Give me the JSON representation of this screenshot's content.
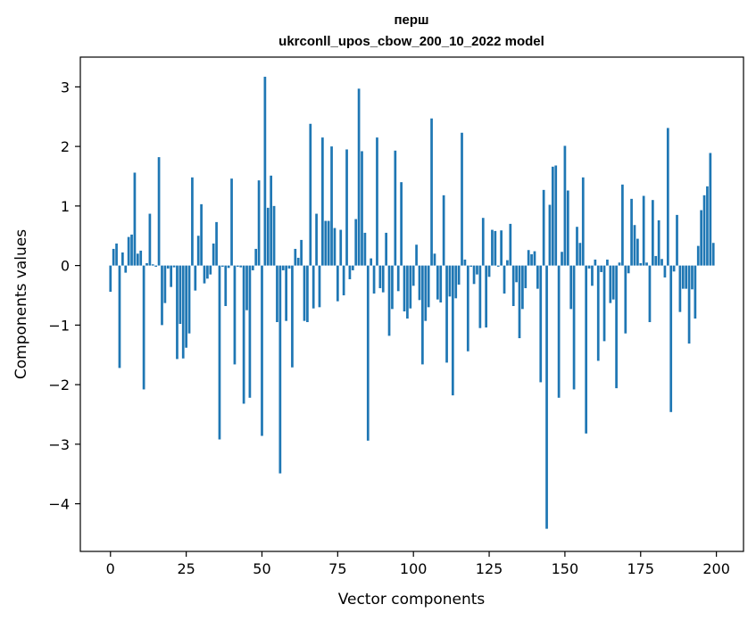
{
  "chart_data": {
    "type": "bar",
    "title": "перш",
    "subtitle": "ukrconll_upos_cbow_200_10_2022 model",
    "xlabel": "Vector components",
    "ylabel": "Components values",
    "xlim": [
      -9.95,
      208.95
    ],
    "ylim": [
      -4.8,
      3.5
    ],
    "xticks": [
      0,
      25,
      50,
      75,
      100,
      125,
      150,
      175,
      200
    ],
    "yticks": [
      -4,
      -3,
      -2,
      -1,
      0,
      1,
      2,
      3
    ],
    "xtick_labels": [
      "0",
      "25",
      "50",
      "75",
      "100",
      "125",
      "150",
      "175",
      "200"
    ],
    "ytick_labels": [
      "−4",
      "−3",
      "−2",
      "−1",
      "0",
      "1",
      "2",
      "3"
    ],
    "bar_color": "#1f77b4",
    "grid": false,
    "legend": "none",
    "x": [
      0,
      1,
      2,
      3,
      4,
      5,
      6,
      7,
      8,
      9,
      10,
      11,
      12,
      13,
      14,
      15,
      16,
      17,
      18,
      19,
      20,
      21,
      22,
      23,
      24,
      25,
      26,
      27,
      28,
      29,
      30,
      31,
      32,
      33,
      34,
      35,
      36,
      37,
      38,
      39,
      40,
      41,
      42,
      43,
      44,
      45,
      46,
      47,
      48,
      49,
      50,
      51,
      52,
      53,
      54,
      55,
      56,
      57,
      58,
      59,
      60,
      61,
      62,
      63,
      64,
      65,
      66,
      67,
      68,
      69,
      70,
      71,
      72,
      73,
      74,
      75,
      76,
      77,
      78,
      79,
      80,
      81,
      82,
      83,
      84,
      85,
      86,
      87,
      88,
      89,
      90,
      91,
      92,
      93,
      94,
      95,
      96,
      97,
      98,
      99,
      100,
      101,
      102,
      103,
      104,
      105,
      106,
      107,
      108,
      109,
      110,
      111,
      112,
      113,
      114,
      115,
      116,
      117,
      118,
      119,
      120,
      121,
      122,
      123,
      124,
      125,
      126,
      127,
      128,
      129,
      130,
      131,
      132,
      133,
      134,
      135,
      136,
      137,
      138,
      139,
      140,
      141,
      142,
      143,
      144,
      145,
      146,
      147,
      148,
      149,
      150,
      151,
      152,
      153,
      154,
      155,
      156,
      157,
      158,
      159,
      160,
      161,
      162,
      163,
      164,
      165,
      166,
      167,
      168,
      169,
      170,
      171,
      172,
      173,
      174,
      175,
      176,
      177,
      178,
      179,
      180,
      181,
      182,
      183,
      184,
      185,
      186,
      187,
      188,
      189,
      190,
      191,
      192,
      193,
      194,
      195,
      196,
      197,
      198,
      199
    ],
    "values": [
      -0.44,
      0.28,
      0.37,
      -1.72,
      0.22,
      -0.12,
      0.48,
      0.52,
      1.56,
      0.2,
      0.25,
      -2.08,
      0.04,
      0.87,
      0.02,
      -0.02,
      1.82,
      -1.0,
      -0.63,
      -0.05,
      -0.36,
      -0.03,
      -1.57,
      -0.98,
      -1.56,
      -1.38,
      -1.14,
      1.48,
      -0.42,
      0.5,
      1.03,
      -0.3,
      -0.22,
      -0.15,
      0.37,
      0.73,
      -2.92,
      -0.02,
      -0.68,
      -0.04,
      1.46,
      -1.66,
      -0.02,
      -0.03,
      -2.32,
      -0.75,
      -2.22,
      -0.08,
      0.28,
      1.43,
      -2.86,
      3.17,
      0.97,
      1.51,
      1.0,
      -0.95,
      -3.49,
      -0.08,
      -0.93,
      -0.05,
      -1.71,
      0.28,
      0.13,
      0.43,
      -0.93,
      -0.95,
      2.38,
      -0.72,
      0.87,
      -0.7,
      2.15,
      0.75,
      0.75,
      2.0,
      0.63,
      -0.6,
      0.6,
      -0.5,
      1.95,
      -0.23,
      -0.08,
      0.78,
      2.97,
      1.92,
      0.55,
      -2.94,
      0.12,
      -0.47,
      2.15,
      -0.38,
      -0.45,
      0.55,
      -1.18,
      -0.73,
      1.93,
      -0.43,
      1.4,
      -0.77,
      -0.89,
      -0.72,
      -0.34,
      0.35,
      -0.58,
      -1.66,
      -0.93,
      -0.7,
      2.47,
      0.2,
      -0.57,
      -0.62,
      1.18,
      -1.63,
      -0.52,
      -2.18,
      -0.55,
      -0.32,
      2.23,
      0.1,
      -1.44,
      -0.02,
      -0.31,
      -0.15,
      -1.05,
      0.8,
      -1.04,
      -0.19,
      0.6,
      0.58,
      -0.02,
      0.59,
      -0.47,
      0.09,
      0.7,
      -0.68,
      -0.28,
      -1.22,
      -0.73,
      -0.38,
      0.26,
      0.19,
      0.24,
      -0.39,
      -1.96,
      1.27,
      -4.42,
      1.02,
      1.66,
      1.68,
      -2.22,
      0.23,
      2.01,
      1.26,
      -0.73,
      -2.08,
      0.65,
      0.38,
      1.48,
      -2.82,
      -0.05,
      -0.34,
      0.1,
      -1.6,
      -0.11,
      -1.27,
      0.1,
      -0.63,
      -0.57,
      -2.06,
      0.05,
      1.36,
      -1.14,
      -0.13,
      1.12,
      0.68,
      0.45,
      0.04,
      1.17,
      0.05,
      -0.95,
      1.1,
      0.16,
      0.76,
      0.11,
      -0.2,
      2.31,
      -2.46,
      -0.1,
      0.85,
      -0.78,
      -0.39,
      -0.39,
      -1.31,
      -0.4,
      -0.89,
      0.33,
      0.93,
      1.18,
      1.33,
      1.89,
      0.38
    ]
  }
}
